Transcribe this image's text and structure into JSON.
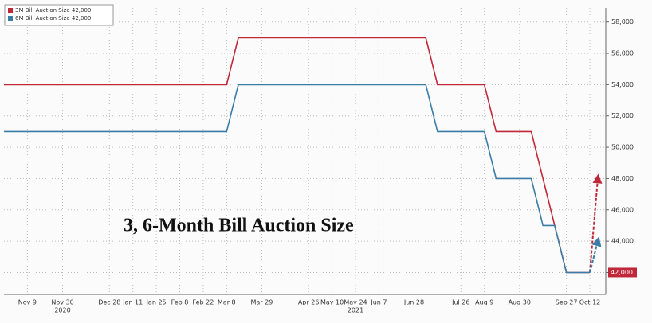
{
  "chart_data": {
    "type": "line",
    "title": "3, 6-Month Bill Auction Size",
    "categories": [
      null,
      null,
      "Nov 9",
      null,
      null,
      "Nov 30",
      null,
      null,
      null,
      "Dec 28",
      null,
      "Jan 11",
      null,
      "Jan 25",
      null,
      "Feb 8",
      null,
      "Feb 22",
      null,
      "Mar 8",
      null,
      null,
      "Mar 29",
      null,
      null,
      null,
      "Apr 26",
      null,
      "May 10",
      null,
      "May 24",
      null,
      "Jun 7",
      null,
      null,
      "Jun 28",
      null,
      null,
      null,
      "Jul 26",
      null,
      "Aug 9",
      null,
      null,
      "Aug 30",
      null,
      null,
      null,
      "Sep 27",
      null,
      "Oct 12"
    ],
    "year_labels": [
      "2020",
      "2021"
    ],
    "series": [
      {
        "name": "3M Bill Auction Size 42,000",
        "color": "#c0283a",
        "values": [
          54000,
          54000,
          54000,
          54000,
          54000,
          54000,
          54000,
          54000,
          54000,
          54000,
          54000,
          54000,
          54000,
          54000,
          54000,
          54000,
          54000,
          54000,
          54000,
          54000,
          57000,
          57000,
          57000,
          57000,
          57000,
          57000,
          57000,
          57000,
          57000,
          57000,
          57000,
          57000,
          57000,
          57000,
          57000,
          57000,
          57000,
          54000,
          54000,
          54000,
          54000,
          54000,
          51000,
          51000,
          51000,
          51000,
          48000,
          45000,
          42000,
          42000,
          42000
        ],
        "projected": 48000,
        "last_label": "42,000"
      },
      {
        "name": "6M Bill Auction Size 42,000",
        "color": "#3a7ca8",
        "values": [
          51000,
          51000,
          51000,
          51000,
          51000,
          51000,
          51000,
          51000,
          51000,
          51000,
          51000,
          51000,
          51000,
          51000,
          51000,
          51000,
          51000,
          51000,
          51000,
          51000,
          54000,
          54000,
          54000,
          54000,
          54000,
          54000,
          54000,
          54000,
          54000,
          54000,
          54000,
          54000,
          54000,
          54000,
          54000,
          54000,
          54000,
          51000,
          51000,
          51000,
          51000,
          51000,
          48000,
          48000,
          48000,
          48000,
          45000,
          45000,
          42000,
          42000,
          42000
        ],
        "projected": 44000
      }
    ],
    "ylim": [
      40600,
      58900
    ],
    "yticks": [
      {
        "value": 42000,
        "label": "42,000"
      },
      {
        "value": 44000,
        "label": "44,000"
      },
      {
        "value": 46000,
        "label": "46,000"
      },
      {
        "value": 48000,
        "label": "48,000"
      },
      {
        "value": 50000,
        "label": "50,000"
      },
      {
        "value": 52000,
        "label": "52,000"
      },
      {
        "value": 54000,
        "label": "54,000"
      },
      {
        "value": 56000,
        "label": "56,000"
      },
      {
        "value": 58000,
        "label": "58,000"
      }
    ],
    "grid": true
  }
}
